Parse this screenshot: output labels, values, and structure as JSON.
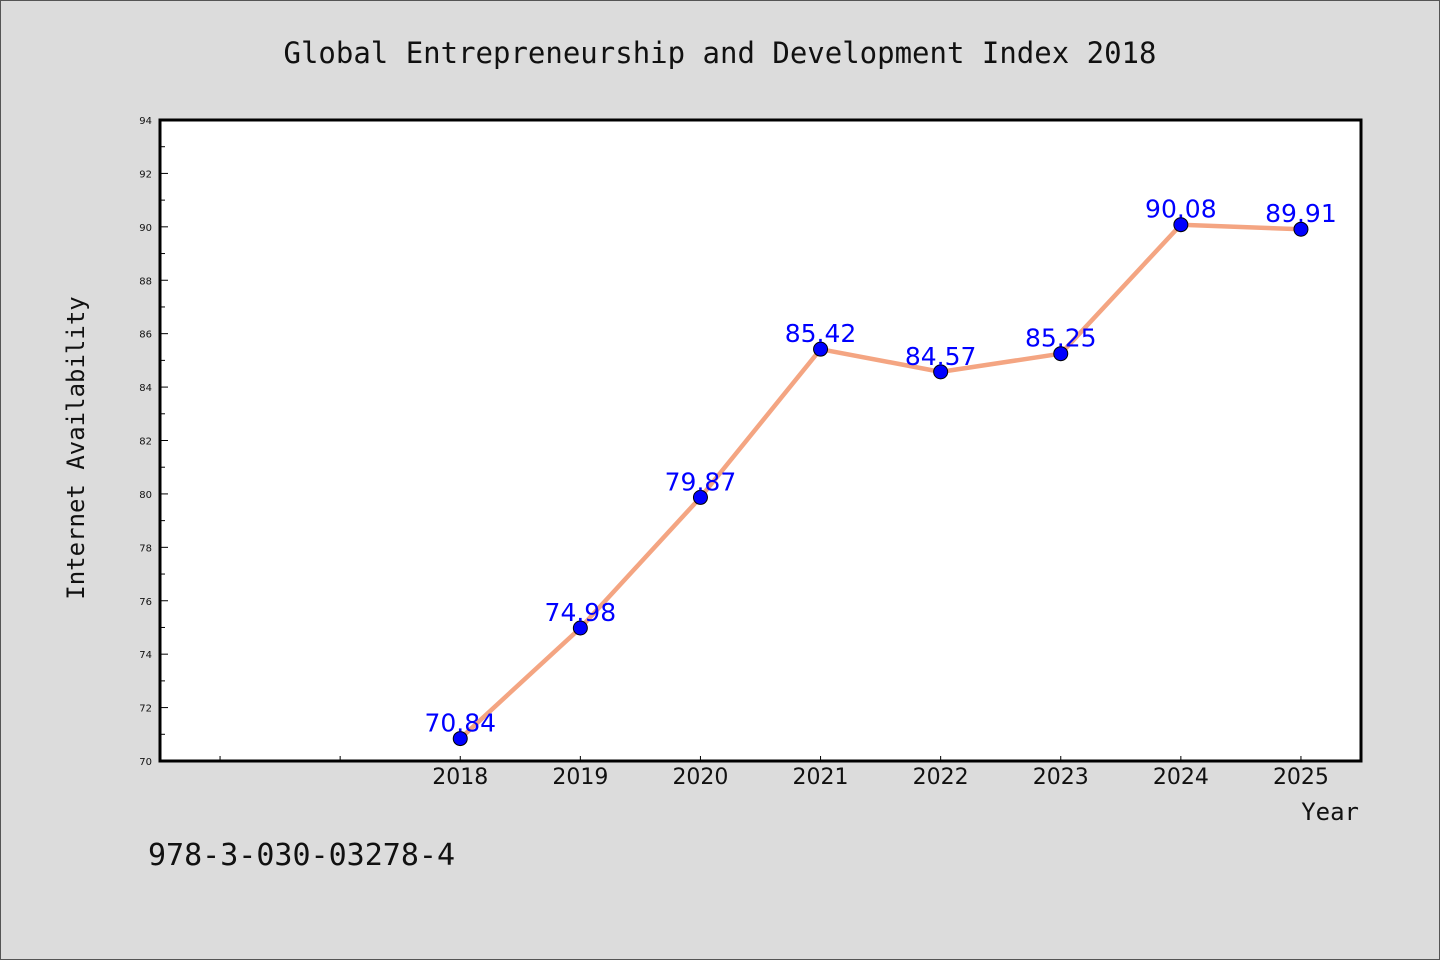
{
  "chart_data": {
    "type": "line",
    "title": "Global Entrepreneurship and Development Index 2018",
    "xlabel": "Year",
    "ylabel": "Internet Availability",
    "x_axis_range": [
      2015.5,
      2025.5
    ],
    "ylim": [
      70,
      94
    ],
    "y_ticks": [
      "70",
      "72",
      "74",
      "76",
      "78",
      "80",
      "82",
      "84",
      "86",
      "88",
      "90",
      "92",
      "94"
    ],
    "categories": [
      "2018",
      "2019",
      "2020",
      "2021",
      "2022",
      "2023",
      "2024",
      "2025"
    ],
    "series": [
      {
        "x": [
          2018,
          2019,
          2020,
          2021,
          2022,
          2023,
          2024,
          2025
        ],
        "values": [
          70.84,
          74.98,
          79.87,
          85.42,
          84.57,
          85.25,
          90.08,
          89.91
        ],
        "labels": [
          "70.84",
          "74.98",
          "79.87",
          "85.42",
          "84.57",
          "85.25",
          "90.08",
          "89.91"
        ]
      }
    ],
    "grid": false,
    "line_color": "#f4a582",
    "marker_color": "#0000ff",
    "label_color": "#0000ff",
    "background_color": "#dcdcdc",
    "plot_background": "#ffffff"
  },
  "footer": {
    "isbn": "978-3-030-03278-4"
  }
}
